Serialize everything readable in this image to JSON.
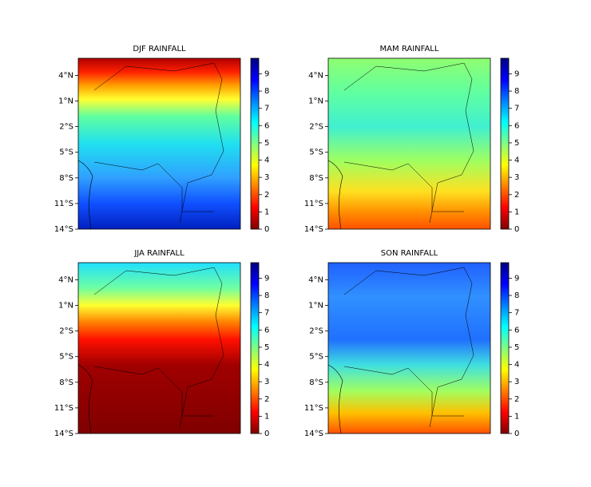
{
  "chart_data": [
    {
      "type": "map",
      "title": "DJF RAINFALL",
      "colormap": "jet_r",
      "ylim": [
        -14,
        6
      ],
      "yticks": [
        {
          "value": 4,
          "label": "4°N"
        },
        {
          "value": 1,
          "label": "1°N"
        },
        {
          "value": -2,
          "label": "2°S"
        },
        {
          "value": -5,
          "label": "5°S"
        },
        {
          "value": -8,
          "label": "8°S"
        },
        {
          "value": -11,
          "label": "11°S"
        },
        {
          "value": -14,
          "label": "14°S"
        }
      ],
      "clim": [
        0,
        9.9
      ],
      "cticks": [
        0,
        1,
        2,
        3,
        4,
        5,
        6,
        7,
        8,
        9
      ]
    },
    {
      "type": "map",
      "title": "MAM RAINFALL",
      "colormap": "jet_r",
      "ylim": [
        -14,
        6
      ],
      "yticks": [
        {
          "value": 4,
          "label": "4°N"
        },
        {
          "value": 1,
          "label": "1°N"
        },
        {
          "value": -2,
          "label": "2°S"
        },
        {
          "value": -5,
          "label": "5°S"
        },
        {
          "value": -8,
          "label": "8°S"
        },
        {
          "value": -11,
          "label": "11°S"
        },
        {
          "value": -14,
          "label": "14°S"
        }
      ],
      "clim": [
        0,
        9.9
      ],
      "cticks": [
        0,
        1,
        2,
        3,
        4,
        5,
        6,
        7,
        8,
        9
      ]
    },
    {
      "type": "map",
      "title": "JJA RAINFALL",
      "colormap": "jet_r",
      "ylim": [
        -14,
        6
      ],
      "yticks": [
        {
          "value": 4,
          "label": "4°N"
        },
        {
          "value": 1,
          "label": "1°N"
        },
        {
          "value": -2,
          "label": "2°S"
        },
        {
          "value": -5,
          "label": "5°S"
        },
        {
          "value": -8,
          "label": "8°S"
        },
        {
          "value": -11,
          "label": "11°S"
        },
        {
          "value": -14,
          "label": "14°S"
        }
      ],
      "clim": [
        0,
        9.9
      ],
      "cticks": [
        0,
        1,
        2,
        3,
        4,
        5,
        6,
        7,
        8,
        9
      ]
    },
    {
      "type": "map",
      "title": "SON RAINFALL",
      "colormap": "jet_r",
      "ylim": [
        -14,
        6
      ],
      "yticks": [
        {
          "value": 4,
          "label": "4°N"
        },
        {
          "value": 1,
          "label": "1°N"
        },
        {
          "value": -2,
          "label": "2°S"
        },
        {
          "value": -5,
          "label": "5°S"
        },
        {
          "value": -8,
          "label": "8°S"
        },
        {
          "value": -11,
          "label": "11°S"
        },
        {
          "value": -14,
          "label": "14°S"
        }
      ],
      "clim": [
        0,
        9.9
      ],
      "cticks": [
        0,
        1,
        2,
        3,
        4,
        5,
        6,
        7,
        8,
        9
      ]
    }
  ]
}
